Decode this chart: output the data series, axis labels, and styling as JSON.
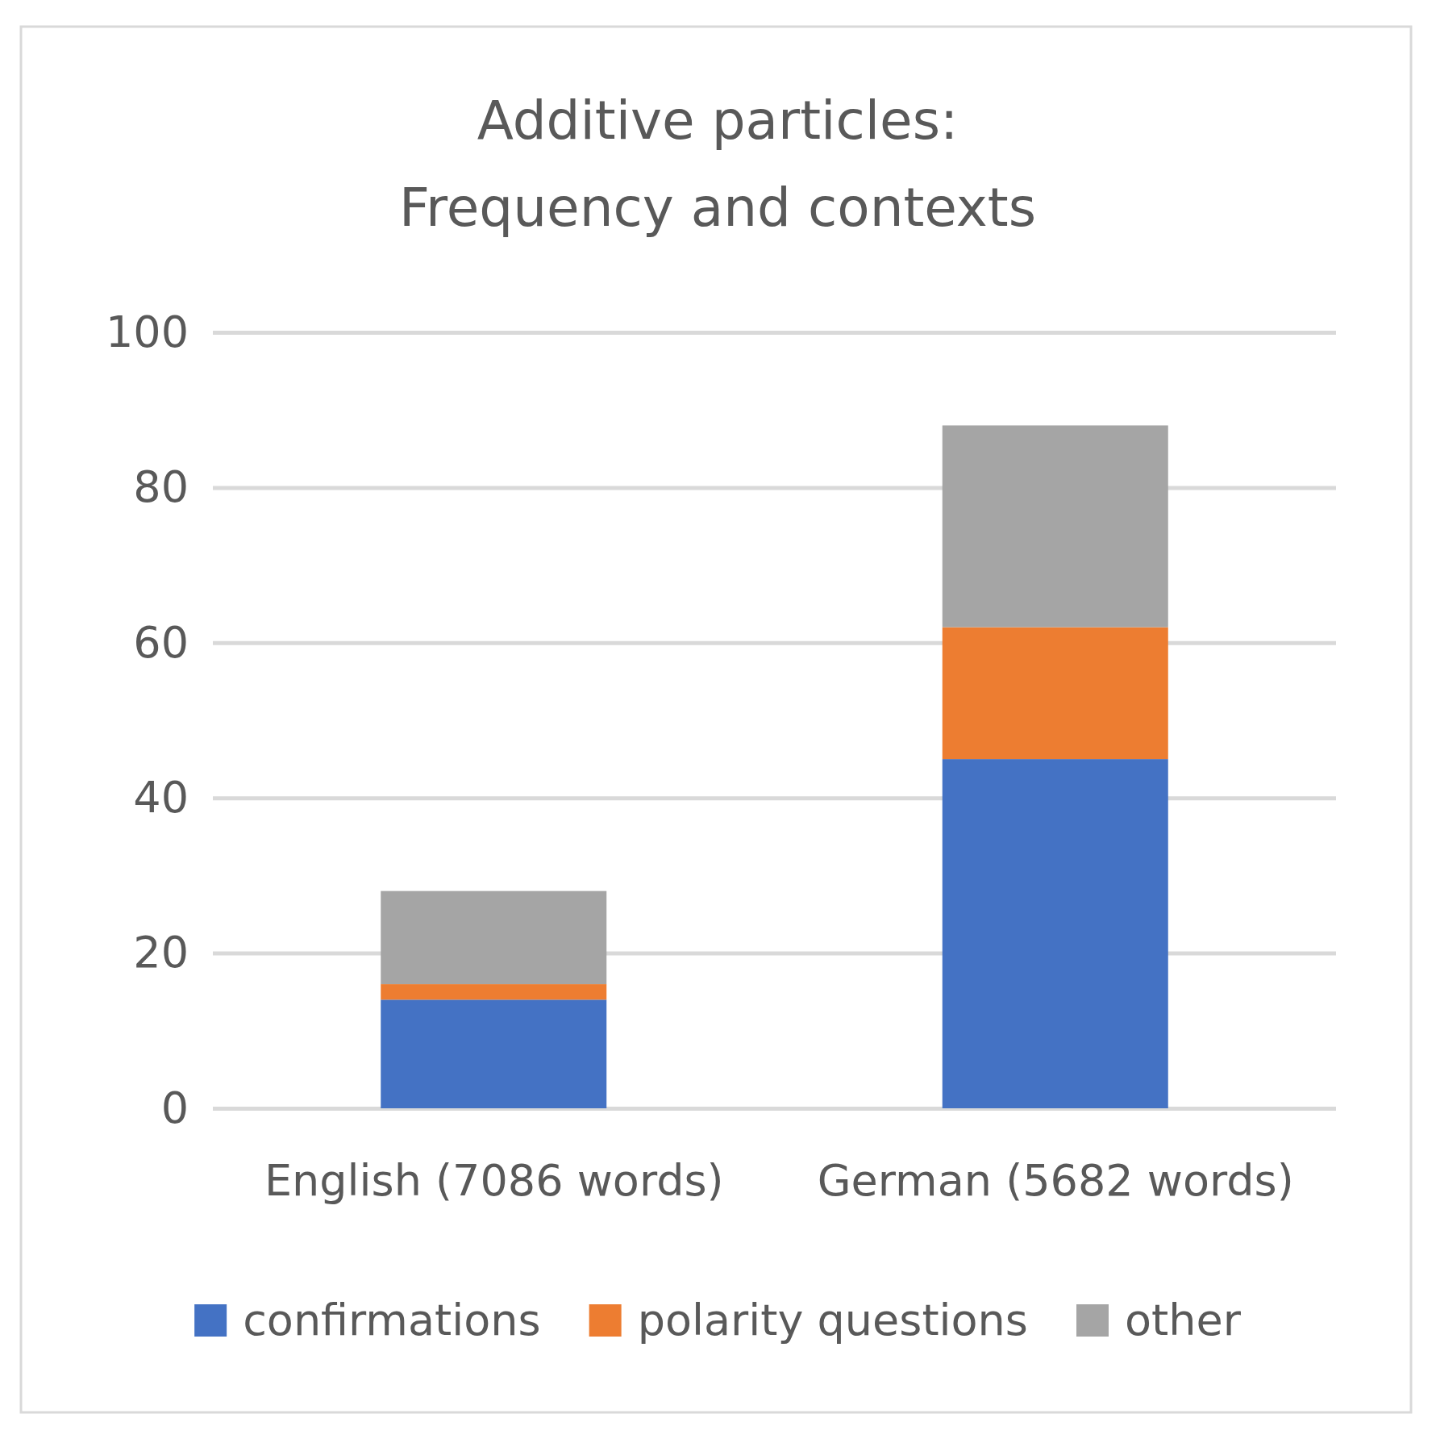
{
  "chart_data": {
    "type": "bar",
    "title": "Additive particles:\nFrequency and contexts",
    "categories": [
      "English (7086 words)",
      "German (5682 words)"
    ],
    "stacked": true,
    "series": [
      {
        "name": "confirmations",
        "color": "#4472c4",
        "values": [
          14,
          45
        ]
      },
      {
        "name": "polarity questions",
        "color": "#ed7d31",
        "values": [
          2,
          17
        ]
      },
      {
        "name": "other",
        "color": "#a5a5a5",
        "values": [
          12,
          26
        ]
      }
    ],
    "ylim": [
      0,
      100
    ],
    "yticks": [
      0,
      20,
      40,
      60,
      80,
      100
    ],
    "grid": "y",
    "legend": "bottom"
  }
}
